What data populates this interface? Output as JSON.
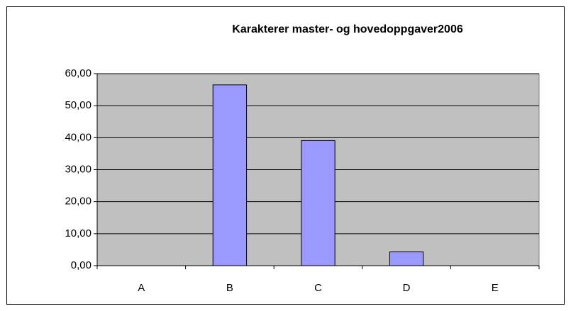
{
  "chart_data": {
    "type": "bar",
    "title": "Karakterer master- og hovedoppgaver2006",
    "categories": [
      "A",
      "B",
      "C",
      "D",
      "E"
    ],
    "values": [
      0,
      56.5,
      39.1,
      4.3,
      0
    ],
    "color": "#9999ff",
    "ylim": [
      0,
      60
    ],
    "yticks": [
      {
        "value": 0,
        "label": "0,00"
      },
      {
        "value": 10,
        "label": "10,00"
      },
      {
        "value": 20,
        "label": "20,00"
      },
      {
        "value": 30,
        "label": "30,00"
      },
      {
        "value": 40,
        "label": "40,00"
      },
      {
        "value": 50,
        "label": "50,00"
      },
      {
        "value": 60,
        "label": "60,00"
      }
    ],
    "grid": true
  }
}
